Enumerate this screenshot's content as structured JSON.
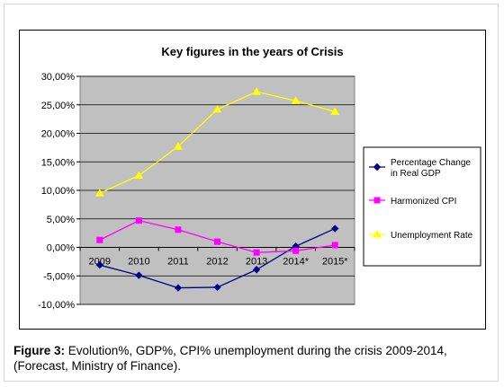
{
  "caption": {
    "label": "Figure 3:",
    "text": "Evolution%, GDP%, CPI% unemployment during the crisis 2009-2014, (Forecast, Ministry of Finance)."
  },
  "chart_data": {
    "type": "line",
    "title": "Key figures in the years of Crisis",
    "xlabel": "",
    "ylabel": "",
    "categories": [
      "2009",
      "2010",
      "2011",
      "2012",
      "2013",
      "2014*",
      "2015*"
    ],
    "ylim": [
      -10,
      30
    ],
    "y_ticks": [
      "30,00%",
      "25,00%",
      "20,00%",
      "15,00%",
      "10,00%",
      "5,00%",
      "0,00%",
      "-5,00%",
      "-10,00%"
    ],
    "plot_background": "#c0c0c0",
    "grid": true,
    "legend_position": "right",
    "series": [
      {
        "name": "Percentage Change in Real GDP",
        "legend_lines": [
          "Percentage Change",
          "in Real GDP"
        ],
        "color": "#00008b",
        "marker": "diamond",
        "values": [
          -3.1,
          -4.9,
          -7.1,
          -7.0,
          -3.9,
          0.2,
          3.3
        ]
      },
      {
        "name": "Harmonized CPI",
        "legend_lines": [
          "Harmonized CPI"
        ],
        "color": "#ff00ff",
        "marker": "square",
        "values": [
          1.3,
          4.7,
          3.1,
          1.0,
          -0.9,
          -0.6,
          0.4
        ]
      },
      {
        "name": "Unemployment Rate",
        "legend_lines": [
          "Unemployment Rate"
        ],
        "color": "#ffff00",
        "marker": "triangle",
        "values": [
          9.5,
          12.6,
          17.7,
          24.2,
          27.3,
          25.7,
          23.8
        ]
      }
    ]
  }
}
